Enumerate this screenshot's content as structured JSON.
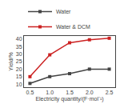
{
  "chart_data": {
    "type": "line",
    "xlabel": "Electricity quantity/(F·mol⁻¹)",
    "ylabel": "Yield/%",
    "x": [
      0.5,
      1.0,
      1.5,
      2.0,
      2.5
    ],
    "series": [
      {
        "name": "Water",
        "color": "#444444",
        "marker": "square",
        "line_style": "solid",
        "values": [
          10.5,
          15.0,
          17.0,
          20.0,
          20.0
        ]
      },
      {
        "name": "Water & DCM",
        "color": "#cc2222",
        "marker": "square",
        "line_style": "solid",
        "values": [
          15.0,
          29.5,
          37.5,
          39.5,
          40.5
        ]
      }
    ],
    "xlim": [
      0.35,
      2.65
    ],
    "ylim": [
      8,
      42
    ],
    "xticks": [
      0.5,
      {
        "value": 1.0,
        "label": "1.0"
      },
      1.5,
      {
        "value": 2.0,
        "label": "2.0"
      },
      2.5
    ],
    "yticks": [
      10,
      15,
      20,
      25,
      30,
      35,
      40
    ],
    "grid": false,
    "legend": "top"
  }
}
